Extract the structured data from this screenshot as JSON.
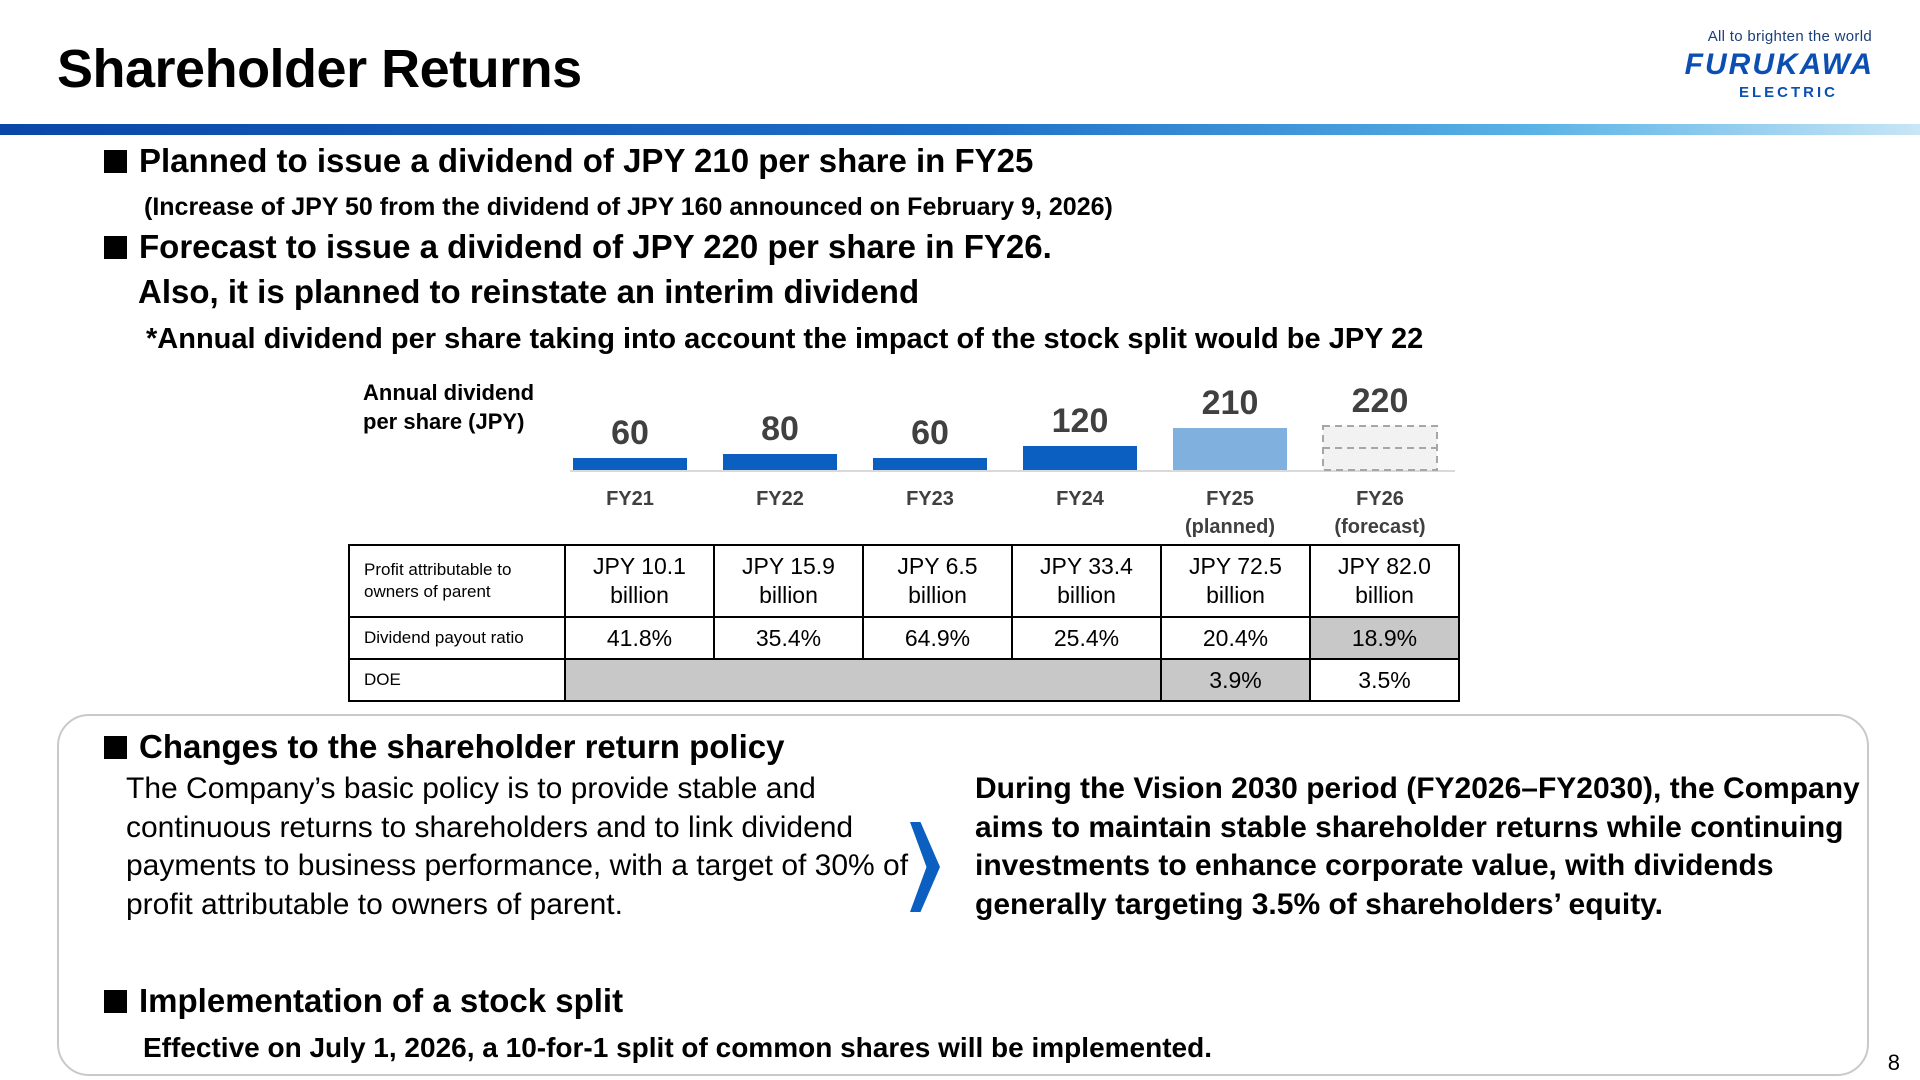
{
  "header": {
    "title": "Shareholder Returns",
    "tagline": "All to brighten the world",
    "logo_main": "FURUKAWA",
    "logo_sub": "ELECTRIC"
  },
  "bullets": {
    "b1": "Planned to issue a dividend of JPY 210 per share in FY25",
    "b1_sub": "(Increase of JPY 50 from the dividend of JPY 160 announced on February 9, 2026)",
    "b2_line1": "Forecast to issue a dividend of JPY 220 per share in FY26.",
    "b2_line2": "Also, it is planned to reinstate an interim dividend",
    "note": "*Annual dividend  per share taking into account the impact of the stock split would be JPY 22"
  },
  "chart_data": {
    "type": "bar",
    "title": "Annual dividend per share (JPY)",
    "categories": [
      "FY21",
      "FY22",
      "FY23",
      "FY24",
      "FY25 (planned)",
      "FY26 (forecast)"
    ],
    "values": [
      60,
      80,
      60,
      120,
      210,
      220
    ],
    "bar_styles": [
      "solid",
      "solid",
      "solid",
      "solid",
      "light",
      "dashed"
    ],
    "colors": {
      "solid": "#0b5fc0",
      "light": "#7fb0de",
      "dashed_fill": "#f2f2f2",
      "dashed_border": "#a6a6a6"
    }
  },
  "chart_label_line1": "Annual dividend",
  "chart_label_line2": "per share (JPY)",
  "category_lines": [
    [
      "FY21",
      ""
    ],
    [
      "FY22",
      ""
    ],
    [
      "FY23",
      ""
    ],
    [
      "FY24",
      ""
    ],
    [
      "FY25",
      "(planned)"
    ],
    [
      "FY26",
      "(forecast)"
    ]
  ],
  "table": {
    "rows": [
      {
        "label_lines": [
          "Profit attributable to",
          "owners of parent"
        ],
        "cells": [
          [
            "JPY 10.1",
            "billion"
          ],
          [
            "JPY 15.9",
            "billion"
          ],
          [
            "JPY 6.5",
            "billion"
          ],
          [
            "JPY 33.4",
            "billion"
          ],
          [
            "JPY 72.5",
            "billion"
          ],
          [
            "JPY 82.0",
            "billion"
          ]
        ]
      },
      {
        "label": "Dividend payout ratio",
        "cells": [
          "41.8%",
          "35.4%",
          "64.9%",
          "25.4%",
          "20.4%",
          "18.9%"
        ]
      },
      {
        "label": "DOE",
        "cells": [
          "3.9%",
          "3.5%"
        ]
      }
    ]
  },
  "policy": {
    "heading": "Changes to the shareholder return policy",
    "left_text": "The Company’s basic policy is to provide stable and continuous returns to shareholders and to link dividend payments to business performance, with a target of 30% of profit attributable to owners of parent.",
    "right_text": "During the Vision 2030 period (FY2026–FY2030), the Company aims to maintain stable shareholder returns while continuing investments to enhance corporate value, with dividends generally targeting 3.5% of shareholders’ equity."
  },
  "split": {
    "heading": "Implementation of a stock split",
    "text": "Effective on July 1, 2026, a 10-for-1 split of common shares will be implemented."
  },
  "page_number": "8"
}
